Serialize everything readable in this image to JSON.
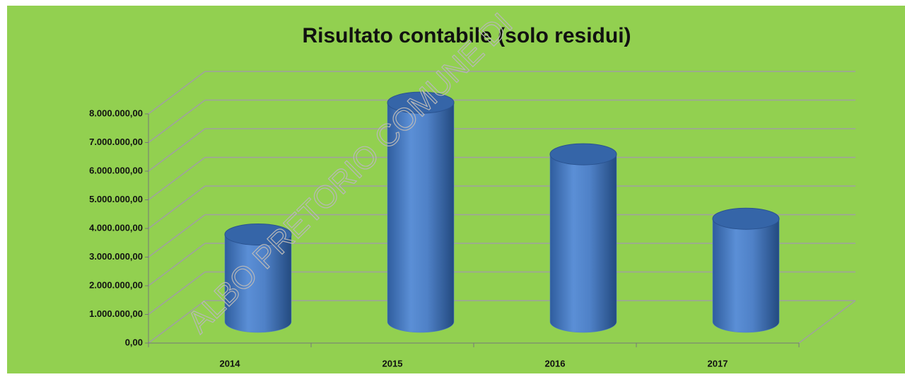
{
  "chart_data": {
    "type": "bar3d_cylinder",
    "title": "Risultato contabile (solo residui)",
    "watermark": "ALBO PRETORIO COMUNE DI",
    "categories": [
      "2014",
      "2015",
      "2016",
      "2017"
    ],
    "values": [
      3050000,
      7650000,
      5850000,
      3600000
    ],
    "color": "#4f81c7",
    "ylim": [
      0,
      8000000
    ],
    "yticks": [
      {
        "value": 0,
        "label": "0,00"
      },
      {
        "value": 1000000,
        "label": "1.000.000,00"
      },
      {
        "value": 2000000,
        "label": "2.000.000,00"
      },
      {
        "value": 3000000,
        "label": "3.000.000,00"
      },
      {
        "value": 4000000,
        "label": "4.000.000,00"
      },
      {
        "value": 5000000,
        "label": "5.000.000,00"
      },
      {
        "value": 6000000,
        "label": "6.000.000,00"
      },
      {
        "value": 7000000,
        "label": "7.000.000,00"
      },
      {
        "value": 8000000,
        "label": "8.000.000,00"
      }
    ],
    "grid": true
  }
}
